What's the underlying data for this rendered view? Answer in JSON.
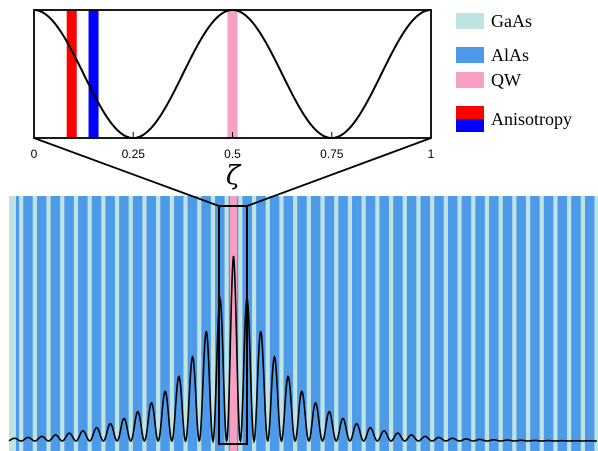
{
  "legend": [
    {
      "label": "GaAs",
      "colors": [
        "#bfe3e3"
      ]
    },
    {
      "label": "AlAs",
      "colors": [
        "#4d9be8"
      ]
    },
    {
      "label": "QW",
      "colors": [
        "#f7a0c4"
      ]
    },
    {
      "label": "Anisotropy",
      "colors": [
        "#ff0000",
        "#0000ff"
      ]
    }
  ],
  "top_axis": {
    "symbol": "ζ",
    "ticks": [
      "0",
      "0.25",
      "0.5",
      "0.75",
      "1"
    ],
    "tick_values": [
      0,
      0.25,
      0.5,
      0.75,
      1
    ]
  },
  "top_panel": {
    "curve": "cos² period 0.5",
    "markers": [
      {
        "layer": "qw",
        "zeta": 0.5,
        "color": "#f7a0c4"
      },
      {
        "layer": "anisotropy-red",
        "zeta": 0.095,
        "color": "#ff0000"
      },
      {
        "layer": "anisotropy-blue",
        "zeta": 0.15,
        "color": "#0000ff"
      }
    ]
  },
  "colors": {
    "gaas": "#bfe3e3",
    "alas": "#4d9be8",
    "qw": "#f7a0c4",
    "curve": "#000000"
  },
  "structure": {
    "stripes_per_side": 20,
    "envelope_decay": "exponential"
  }
}
